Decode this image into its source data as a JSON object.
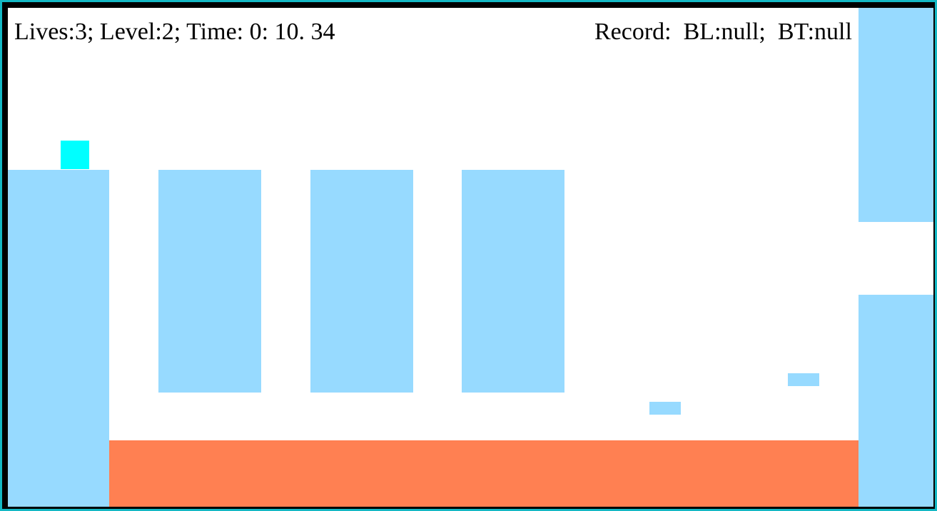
{
  "hud": {
    "status_text": "Lives:3; Level:2; Time: 0: 10. 34",
    "record_text": "Record:  BL:null;  BT:null"
  },
  "game": {
    "lives": 3,
    "level": 2,
    "time": "0: 10. 34",
    "record": {
      "BL": "null",
      "BT": "null"
    }
  },
  "colors": {
    "frame_outer": "#14b8c4",
    "frame_border": "#000000",
    "background": "#ffffff",
    "platform": "#97daff",
    "lava": "#ff8052",
    "player": "#00ffff"
  }
}
